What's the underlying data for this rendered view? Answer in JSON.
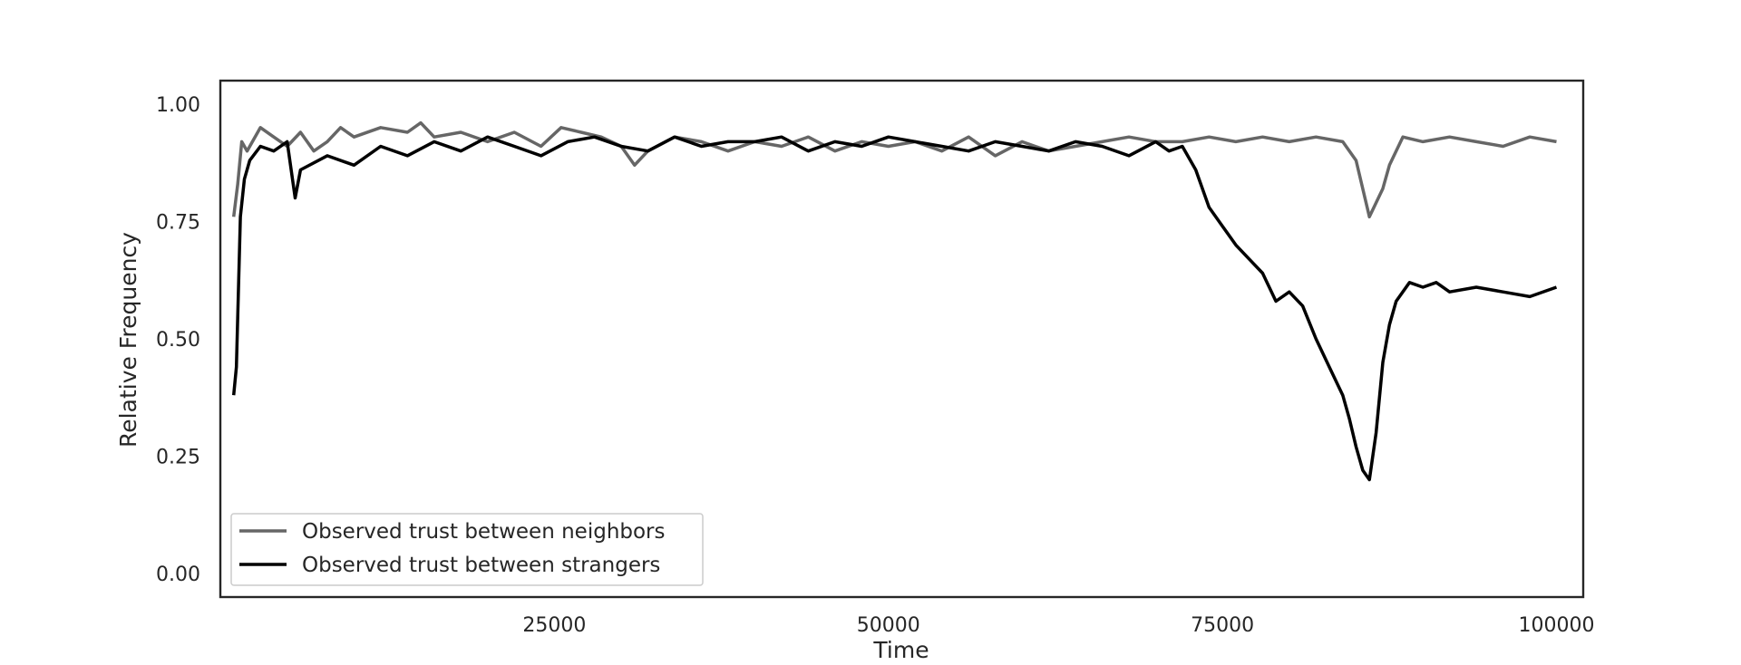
{
  "chart_data": {
    "type": "line",
    "title": "",
    "xlabel": "Time",
    "ylabel": "Relative Frequency",
    "xlim": [
      0,
      102000
    ],
    "ylim": [
      -0.05,
      1.05
    ],
    "xticks": [
      25000,
      50000,
      75000,
      100000
    ],
    "xtick_labels": [
      "25000",
      "50000",
      "75000",
      "100000"
    ],
    "yticks": [
      0.0,
      0.25,
      0.5,
      0.75,
      1.0
    ],
    "ytick_labels": [
      "0.00",
      "0.25",
      "0.50",
      "0.75",
      "1.00"
    ],
    "grid": false,
    "legend_position": "lower-left",
    "series": [
      {
        "name": "Observed trust between neighbors",
        "color": "#666666",
        "x": [
          1000,
          1300,
          1600,
          2000,
          3000,
          4000,
          5000,
          6000,
          7000,
          8000,
          9000,
          10000,
          12000,
          14000,
          15000,
          16000,
          18000,
          20000,
          22000,
          24000,
          25500,
          27000,
          28500,
          30000,
          31000,
          32000,
          34000,
          36000,
          38000,
          40000,
          42000,
          44000,
          46000,
          48000,
          50000,
          52000,
          54000,
          56000,
          58000,
          60000,
          62000,
          64000,
          66000,
          68000,
          70000,
          72000,
          74000,
          76000,
          78000,
          80000,
          82000,
          84000,
          85000,
          86000,
          86500,
          87000,
          87500,
          88500,
          90000,
          92000,
          94000,
          96000,
          98000,
          100000
        ],
        "values": [
          0.76,
          0.83,
          0.92,
          0.9,
          0.95,
          0.93,
          0.91,
          0.94,
          0.9,
          0.92,
          0.95,
          0.93,
          0.95,
          0.94,
          0.96,
          0.93,
          0.94,
          0.92,
          0.94,
          0.91,
          0.95,
          0.94,
          0.93,
          0.91,
          0.87,
          0.9,
          0.93,
          0.92,
          0.9,
          0.92,
          0.91,
          0.93,
          0.9,
          0.92,
          0.91,
          0.92,
          0.9,
          0.93,
          0.89,
          0.92,
          0.9,
          0.91,
          0.92,
          0.93,
          0.92,
          0.92,
          0.93,
          0.92,
          0.93,
          0.92,
          0.93,
          0.92,
          0.88,
          0.76,
          0.79,
          0.82,
          0.87,
          0.93,
          0.92,
          0.93,
          0.92,
          0.91,
          0.93,
          0.92
        ]
      },
      {
        "name": "Observed trust between strangers",
        "color": "#000000",
        "x": [
          1000,
          1200,
          1500,
          1800,
          2200,
          3000,
          4000,
          5000,
          5600,
          6000,
          8000,
          10000,
          12000,
          14000,
          16000,
          18000,
          20000,
          22000,
          24000,
          26000,
          28000,
          30000,
          32000,
          34000,
          36000,
          38000,
          40000,
          42000,
          44000,
          46000,
          48000,
          50000,
          52000,
          54000,
          56000,
          58000,
          60000,
          62000,
          64000,
          66000,
          68000,
          70000,
          71000,
          72000,
          73000,
          74000,
          75000,
          76000,
          77000,
          78000,
          79000,
          80000,
          81000,
          82000,
          83000,
          84000,
          84500,
          85000,
          85500,
          86000,
          86500,
          87000,
          87500,
          88000,
          89000,
          90000,
          91000,
          92000,
          94000,
          96000,
          98000,
          100000
        ],
        "values": [
          0.38,
          0.44,
          0.76,
          0.84,
          0.88,
          0.91,
          0.9,
          0.92,
          0.8,
          0.86,
          0.89,
          0.87,
          0.91,
          0.89,
          0.92,
          0.9,
          0.93,
          0.91,
          0.89,
          0.92,
          0.93,
          0.91,
          0.9,
          0.93,
          0.91,
          0.92,
          0.92,
          0.93,
          0.9,
          0.92,
          0.91,
          0.93,
          0.92,
          0.91,
          0.9,
          0.92,
          0.91,
          0.9,
          0.92,
          0.91,
          0.89,
          0.92,
          0.9,
          0.91,
          0.86,
          0.78,
          0.74,
          0.7,
          0.67,
          0.64,
          0.58,
          0.6,
          0.57,
          0.5,
          0.44,
          0.38,
          0.33,
          0.27,
          0.22,
          0.2,
          0.3,
          0.45,
          0.53,
          0.58,
          0.62,
          0.61,
          0.62,
          0.6,
          0.61,
          0.6,
          0.59,
          0.61
        ]
      }
    ]
  }
}
